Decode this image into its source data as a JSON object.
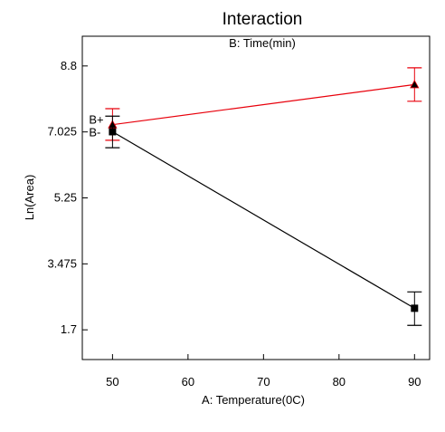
{
  "chart_data": {
    "type": "line",
    "title": "Interaction",
    "subtitle": "B: Time(min)",
    "xlabel": "A: Temperature(0C)",
    "ylabel": "Ln(Area)",
    "xlim": [
      46,
      92
    ],
    "ylim": [
      0.9,
      9.6
    ],
    "x_ticks": [
      50,
      60,
      70,
      80,
      90
    ],
    "y_ticks": [
      1.7,
      3.475,
      5.25,
      7.025,
      8.8
    ],
    "y_tick_labels": [
      "1.7",
      "3.475",
      "5.25",
      "7.025",
      "8.8"
    ],
    "grid": false,
    "series": [
      {
        "name": "B+",
        "color": "#e8000b",
        "marker": "triangle",
        "x": [
          50,
          90
        ],
        "values": [
          7.22,
          8.3
        ],
        "error_low": [
          6.8,
          7.85
        ],
        "error_high": [
          7.65,
          8.75
        ]
      },
      {
        "name": "B-",
        "color": "#000000",
        "marker": "square",
        "x": [
          50,
          90
        ],
        "values": [
          7.03,
          2.28
        ],
        "error_low": [
          6.6,
          1.82
        ],
        "error_high": [
          7.45,
          2.72
        ]
      }
    ]
  }
}
